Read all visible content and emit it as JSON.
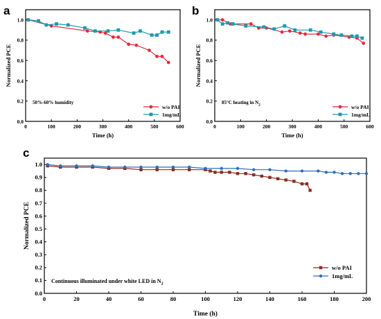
{
  "chart_data": [
    {
      "panel": "a",
      "type": "line",
      "xlabel": "Time (h)",
      "ylabel": "Normalized PCE",
      "xlim": [
        0,
        600
      ],
      "ylim": [
        0.0,
        1.1
      ],
      "xticks": [
        "0",
        "100",
        "200",
        "300",
        "400",
        "500",
        "600"
      ],
      "yticks": [
        "0.0",
        "0.2",
        "0.4",
        "0.6",
        "0.8",
        "1.0"
      ],
      "annotation": "50%-60% humidity",
      "legend_position": "bottom-right",
      "series": [
        {
          "name": "w/o PAI",
          "color": "#e8283c",
          "marker": "circle",
          "x": [
            10,
            100,
            240,
            290,
            310,
            340,
            360,
            400,
            430,
            480,
            510,
            530,
            555
          ],
          "y": [
            1.0,
            0.94,
            0.89,
            0.88,
            0.87,
            0.83,
            0.83,
            0.76,
            0.75,
            0.7,
            0.64,
            0.64,
            0.58
          ]
        },
        {
          "name": "1mg/mL",
          "color": "#1b9ab0",
          "marker": "square",
          "x": [
            10,
            50,
            80,
            120,
            165,
            230,
            270,
            320,
            360,
            420,
            445,
            490,
            510,
            530,
            555
          ],
          "y": [
            1.0,
            0.99,
            0.95,
            0.96,
            0.95,
            0.92,
            0.89,
            0.89,
            0.9,
            0.87,
            0.89,
            0.85,
            0.85,
            0.88,
            0.88
          ]
        }
      ]
    },
    {
      "panel": "b",
      "type": "line",
      "xlabel": "Time (h)",
      "ylabel": "Normalized PCE",
      "xlim": [
        0,
        600
      ],
      "ylim": [
        0.0,
        1.1
      ],
      "xticks": [
        "0",
        "100",
        "200",
        "300",
        "400",
        "500",
        "600"
      ],
      "yticks": [
        "0.0",
        "0.2",
        "0.4",
        "0.6",
        "0.8",
        "1.0"
      ],
      "annotation_parts": {
        "before": "85",
        "degree": "°",
        "after": "C heating in N",
        "sub": "2"
      },
      "legend_position": "bottom-right",
      "series": [
        {
          "name": "w/o PAI",
          "color": "#e8283c",
          "marker": "circle",
          "x": [
            10,
            30,
            60,
            140,
            170,
            200,
            260,
            290,
            330,
            350,
            400,
            430,
            460,
            520,
            550,
            575
          ],
          "y": [
            1.0,
            1.0,
            0.96,
            0.96,
            0.92,
            0.92,
            0.88,
            0.89,
            0.87,
            0.86,
            0.86,
            0.84,
            0.85,
            0.83,
            0.82,
            0.77
          ]
        },
        {
          "name": "1mg/mL",
          "color": "#1b9ab0",
          "marker": "square",
          "x": [
            10,
            30,
            50,
            70,
            120,
            190,
            230,
            270,
            310,
            370,
            410,
            460,
            490,
            530,
            550,
            570
          ],
          "y": [
            1.0,
            0.96,
            0.97,
            0.96,
            0.94,
            0.93,
            0.91,
            0.94,
            0.9,
            0.9,
            0.88,
            0.86,
            0.85,
            0.84,
            0.84,
            0.82
          ]
        }
      ]
    },
    {
      "panel": "c",
      "type": "line",
      "xlabel": "Time (h)",
      "ylabel": "Normalized PCE",
      "xlim": [
        0,
        200
      ],
      "ylim": [
        0.0,
        1.05
      ],
      "xticks": [
        "0",
        "20",
        "40",
        "60",
        "80",
        "100",
        "120",
        "140",
        "160",
        "180",
        "200"
      ],
      "yticks": [
        "0.0",
        "0.1",
        "0.2",
        "0.3",
        "0.4",
        "0.5",
        "0.6",
        "0.7",
        "0.8",
        "0.9",
        "1.0"
      ],
      "annotation_parts": {
        "text": "Continuous illuminated under white LED in N",
        "sub": "2"
      },
      "legend_position": "bottom-right",
      "series": [
        {
          "name": "w/o PAI",
          "color": "#8b2c20",
          "marker": "square",
          "x": [
            2,
            10,
            20,
            30,
            40,
            50,
            60,
            70,
            80,
            90,
            100,
            103,
            106,
            110,
            115,
            120,
            125,
            130,
            135,
            140,
            145,
            150,
            155,
            160,
            163,
            165
          ],
          "y": [
            0.99,
            0.98,
            0.98,
            0.98,
            0.97,
            0.97,
            0.96,
            0.96,
            0.96,
            0.96,
            0.96,
            0.95,
            0.94,
            0.94,
            0.94,
            0.93,
            0.93,
            0.92,
            0.91,
            0.9,
            0.89,
            0.88,
            0.87,
            0.85,
            0.85,
            0.8
          ]
        },
        {
          "name": "1mg/mL",
          "color": "#2a6ebb",
          "marker": "circle",
          "x": [
            2,
            10,
            20,
            30,
            40,
            50,
            60,
            70,
            80,
            90,
            100,
            110,
            120,
            130,
            140,
            150,
            160,
            170,
            175,
            180,
            185,
            190,
            195,
            200
          ],
          "y": [
            1.0,
            0.99,
            0.99,
            0.99,
            0.98,
            0.98,
            0.98,
            0.98,
            0.98,
            0.98,
            0.97,
            0.97,
            0.97,
            0.96,
            0.96,
            0.95,
            0.95,
            0.95,
            0.94,
            0.94,
            0.93,
            0.93,
            0.93,
            0.93
          ]
        }
      ]
    }
  ]
}
